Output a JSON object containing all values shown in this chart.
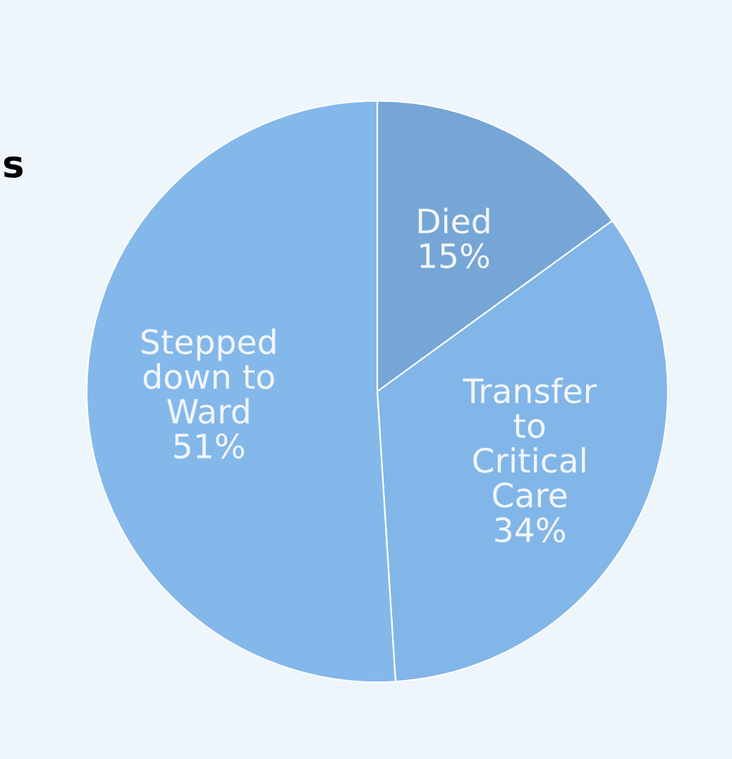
{
  "chart_data": {
    "type": "pie",
    "categories": [
      "Died",
      "Transfer\nto\nCritical\nCare",
      "Stepped\ndown to\nWard"
    ],
    "values": [
      15,
      34,
      51
    ],
    "colors": [
      "#76a6d6",
      "#82b6e8",
      "#84b8ea"
    ],
    "value_labels": [
      "15%",
      "34%",
      "51%"
    ],
    "annotations": [
      "s"
    ]
  }
}
